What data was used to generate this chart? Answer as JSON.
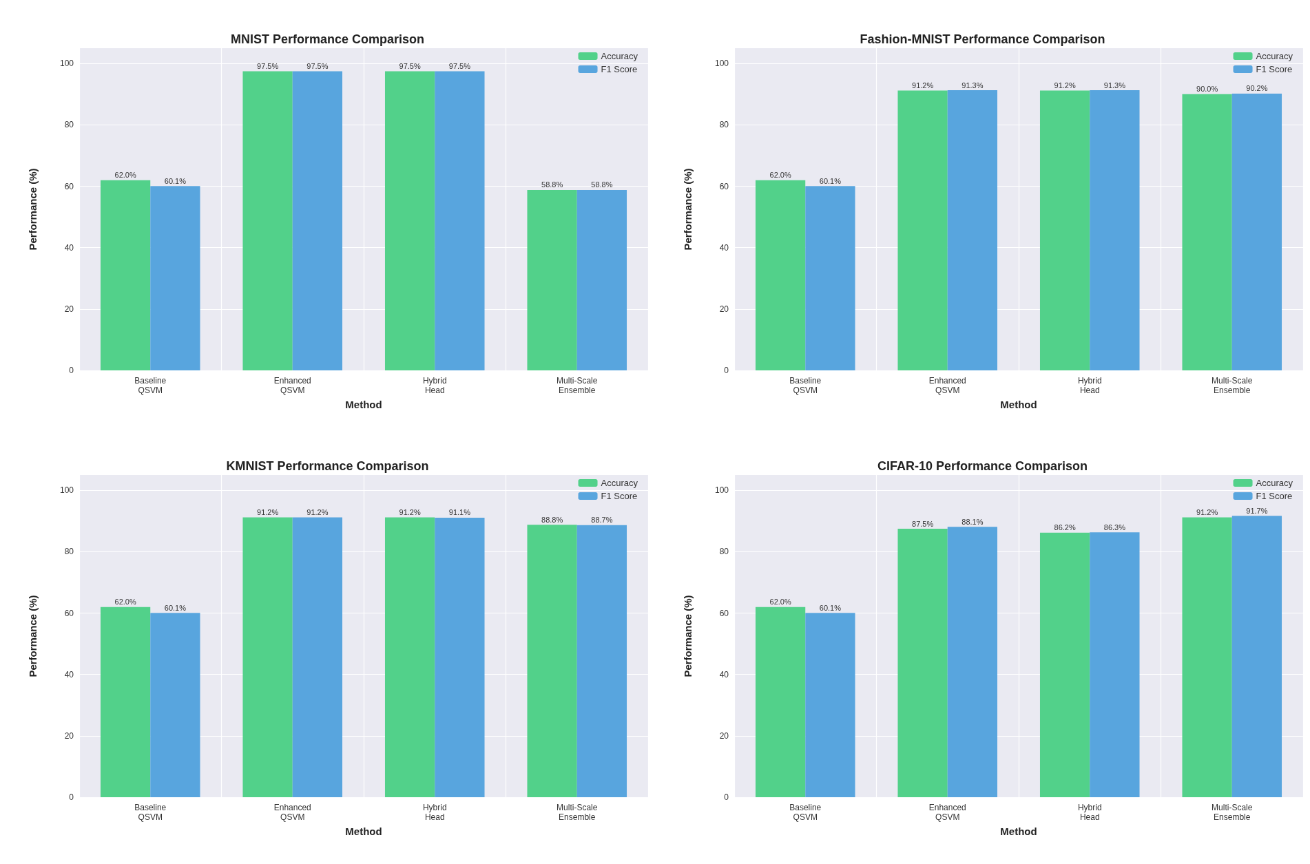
{
  "chart_data": [
    {
      "type": "bar",
      "title": "MNIST Performance Comparison",
      "xlabel": "Method",
      "ylabel": "Performance (%)",
      "categories": [
        "Baseline\nQSVM",
        "Enhanced\nQSVM",
        "Hybrid\nHead",
        "Multi-Scale\nEnsemble"
      ],
      "series": [
        {
          "name": "Accuracy",
          "color": "#52d18a",
          "values": [
            62.0,
            97.5,
            97.5,
            58.8
          ],
          "value_labels": [
            "62.0%",
            "97.5%",
            "97.5%",
            "58.8%"
          ]
        },
        {
          "name": "F1 Score",
          "color": "#58a5de",
          "values": [
            60.1,
            97.5,
            97.5,
            58.8
          ],
          "value_labels": [
            "60.1%",
            "97.5%",
            "97.5%",
            "58.8%"
          ]
        }
      ],
      "ylim": [
        0,
        105
      ],
      "yticks": [
        0,
        20,
        40,
        60,
        80,
        100
      ],
      "grid": true,
      "legend": "top right"
    },
    {
      "type": "bar",
      "title": "Fashion-MNIST Performance Comparison",
      "xlabel": "Method",
      "ylabel": "Performance (%)",
      "categories": [
        "Baseline\nQSVM",
        "Enhanced\nQSVM",
        "Hybrid\nHead",
        "Multi-Scale\nEnsemble"
      ],
      "series": [
        {
          "name": "Accuracy",
          "color": "#52d18a",
          "values": [
            62.0,
            91.2,
            91.2,
            90.0
          ],
          "value_labels": [
            "62.0%",
            "91.2%",
            "91.2%",
            "90.0%"
          ]
        },
        {
          "name": "F1 Score",
          "color": "#58a5de",
          "values": [
            60.1,
            91.3,
            91.3,
            90.2
          ],
          "value_labels": [
            "60.1%",
            "91.3%",
            "91.3%",
            "90.2%"
          ]
        }
      ],
      "ylim": [
        0,
        105
      ],
      "yticks": [
        0,
        20,
        40,
        60,
        80,
        100
      ],
      "grid": true,
      "legend": "top right"
    },
    {
      "type": "bar",
      "title": "KMNIST Performance Comparison",
      "xlabel": "Method",
      "ylabel": "Performance (%)",
      "categories": [
        "Baseline\nQSVM",
        "Enhanced\nQSVM",
        "Hybrid\nHead",
        "Multi-Scale\nEnsemble"
      ],
      "series": [
        {
          "name": "Accuracy",
          "color": "#52d18a",
          "values": [
            62.0,
            91.2,
            91.2,
            88.8
          ],
          "value_labels": [
            "62.0%",
            "91.2%",
            "91.2%",
            "88.8%"
          ]
        },
        {
          "name": "F1 Score",
          "color": "#58a5de",
          "values": [
            60.1,
            91.2,
            91.1,
            88.7
          ],
          "value_labels": [
            "60.1%",
            "91.2%",
            "91.1%",
            "88.7%"
          ]
        }
      ],
      "ylim": [
        0,
        105
      ],
      "yticks": [
        0,
        20,
        40,
        60,
        80,
        100
      ],
      "grid": true,
      "legend": "top right"
    },
    {
      "type": "bar",
      "title": "CIFAR-10 Performance Comparison",
      "xlabel": "Method",
      "ylabel": "Performance (%)",
      "categories": [
        "Baseline\nQSVM",
        "Enhanced\nQSVM",
        "Hybrid\nHead",
        "Multi-Scale\nEnsemble"
      ],
      "series": [
        {
          "name": "Accuracy",
          "color": "#52d18a",
          "values": [
            62.0,
            87.5,
            86.2,
            91.2
          ],
          "value_labels": [
            "62.0%",
            "87.5%",
            "86.2%",
            "91.2%"
          ]
        },
        {
          "name": "F1 Score",
          "color": "#58a5de",
          "values": [
            60.1,
            88.1,
            86.3,
            91.7
          ],
          "value_labels": [
            "60.1%",
            "88.1%",
            "86.3%",
            "91.7%"
          ]
        }
      ],
      "ylim": [
        0,
        105
      ],
      "yticks": [
        0,
        20,
        40,
        60,
        80,
        100
      ],
      "grid": true,
      "legend": "top right"
    }
  ]
}
